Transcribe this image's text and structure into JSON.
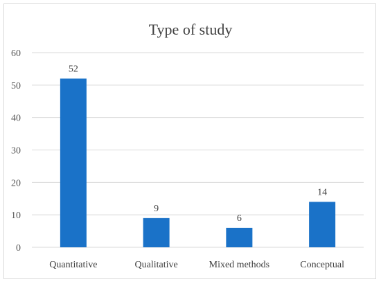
{
  "chart_data": {
    "type": "bar",
    "title": "Type of study",
    "categories": [
      "Quantitative",
      "Qualitative",
      "Mixed methods",
      "Conceptual"
    ],
    "values": [
      52,
      9,
      6,
      14
    ],
    "ylim": [
      0,
      60
    ],
    "yticks": [
      0,
      10,
      20,
      30,
      40,
      50,
      60
    ],
    "xlabel": "",
    "ylabel": "",
    "grid": true,
    "data_labels": true,
    "colors": {
      "bar": "#1a72c8",
      "grid": "#d9d9d9",
      "axis": "#d9d9d9"
    }
  }
}
